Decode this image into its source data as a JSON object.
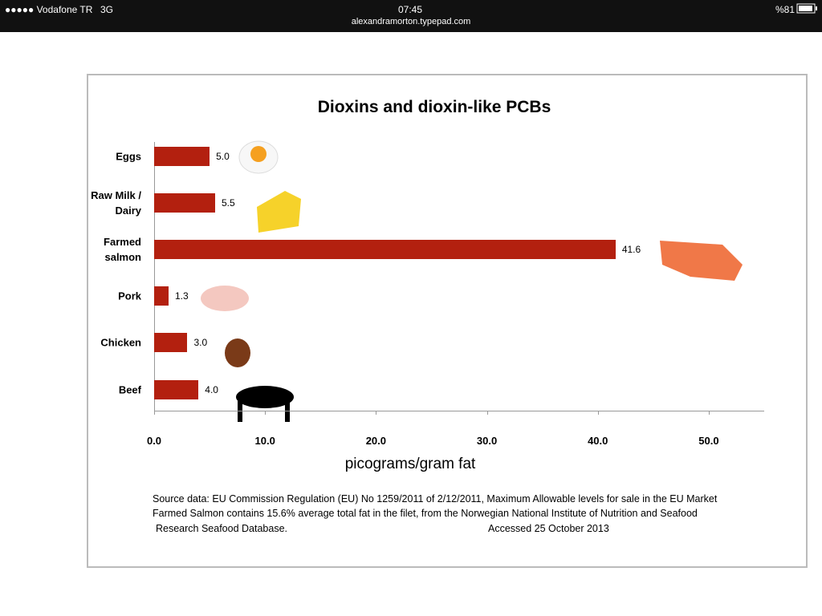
{
  "status_bar": {
    "carrier": "●●●●● Vodafone TR",
    "network": "3G",
    "time": "07:45",
    "url": "alexandramorton.typepad.com",
    "battery": "%81"
  },
  "chart_data": {
    "type": "bar",
    "orientation": "horizontal",
    "title": "Dioxins and dioxin-like PCBs",
    "categories": [
      "Eggs",
      "Raw Milk / Dairy",
      "Farmed salmon",
      "Pork",
      "Chicken",
      "Beef"
    ],
    "values": [
      5.0,
      5.5,
      41.6,
      1.3,
      3.0,
      4.0
    ],
    "value_labels": [
      "5.0",
      "5.5",
      "41.6",
      "1.3",
      "3.0",
      "4.0"
    ],
    "color": "#b3200f",
    "xlim": [
      0,
      55
    ],
    "xticks": [
      {
        "value": 0,
        "label": "0.0"
      },
      {
        "value": 10,
        "label": "10.0"
      },
      {
        "value": 20,
        "label": "20.0"
      },
      {
        "value": 30,
        "label": "30.0"
      },
      {
        "value": 40,
        "label": "40.0"
      },
      {
        "value": 50,
        "label": "50.0"
      }
    ],
    "xlabel": "picograms/gram fat",
    "notes": [
      "Source data: EU Commission Regulation (EU) No 1259/2011 of 2/12/2011, Maximum Allowable levels for sale in the EU Market",
      "Farmed Salmon contains 15.6% average total fat in the filet, from the Norwegian National Institute of Nutrition and Seafood",
      "Research Seafood Database.",
      "Accessed 25 October 2013"
    ]
  }
}
